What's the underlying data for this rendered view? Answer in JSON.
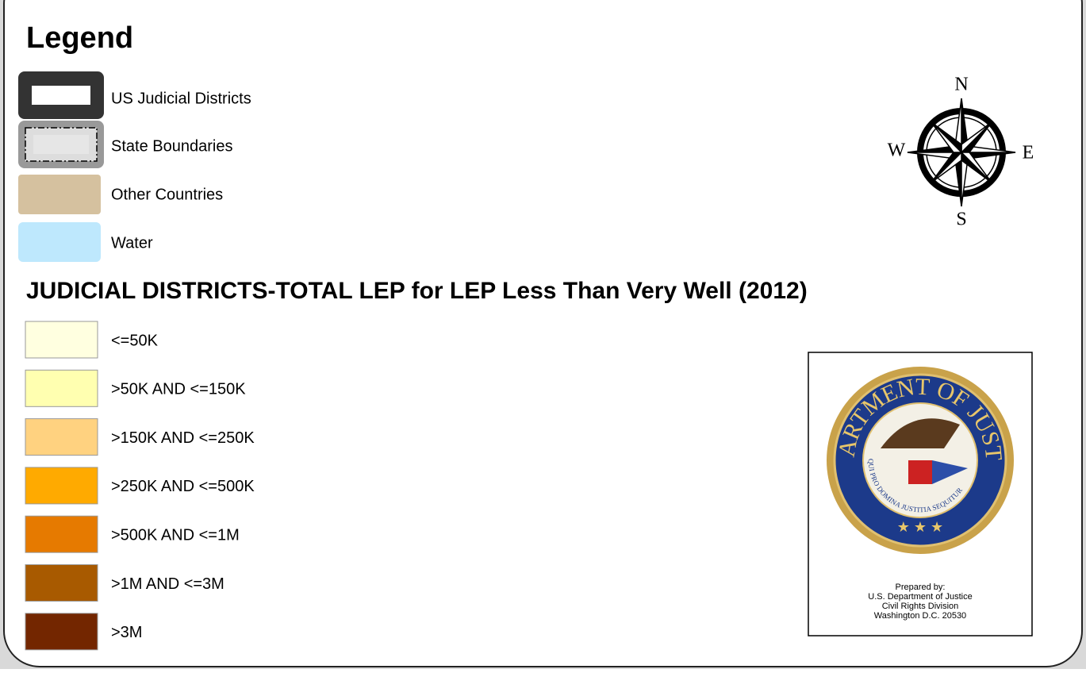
{
  "legend": {
    "title": "Legend",
    "items": [
      {
        "label": "US Judicial Districts"
      },
      {
        "label": "State Boundaries"
      },
      {
        "label": "Other Countries",
        "color": "#d5c19f"
      },
      {
        "label": "Water",
        "color": "#bee8fd"
      }
    ]
  },
  "classification": {
    "title": "JUDICIAL DISTRICTS-TOTAL LEP for LEP Less Than Very Well (2012)",
    "classes": [
      {
        "label": "<=50K",
        "color": "#ffffe0"
      },
      {
        "label": ">50K AND <=150K",
        "color": "#ffffb0"
      },
      {
        "label": ">150K AND <=250K",
        "color": "#ffd280"
      },
      {
        "label": ">250K AND <=500K",
        "color": "#ffaa00"
      },
      {
        "label": ">500K AND <=1M",
        "color": "#e67a00"
      },
      {
        "label": ">1M AND <=3M",
        "color": "#a85a00"
      },
      {
        "label": ">3M",
        "color": "#732600"
      }
    ]
  },
  "compass": {
    "north": "N",
    "east": "E",
    "south": "S",
    "west": "W"
  },
  "seal": {
    "outer_text": "DEPARTMENT OF JUSTICE",
    "motto": "QUI PRO DOMINA JUSTITIA SEQUITUR"
  },
  "credit": {
    "lines": [
      "Prepared by:",
      "U.S. Department of Justice",
      "Civil Rights Division",
      "Washington D.C. 20530"
    ]
  }
}
